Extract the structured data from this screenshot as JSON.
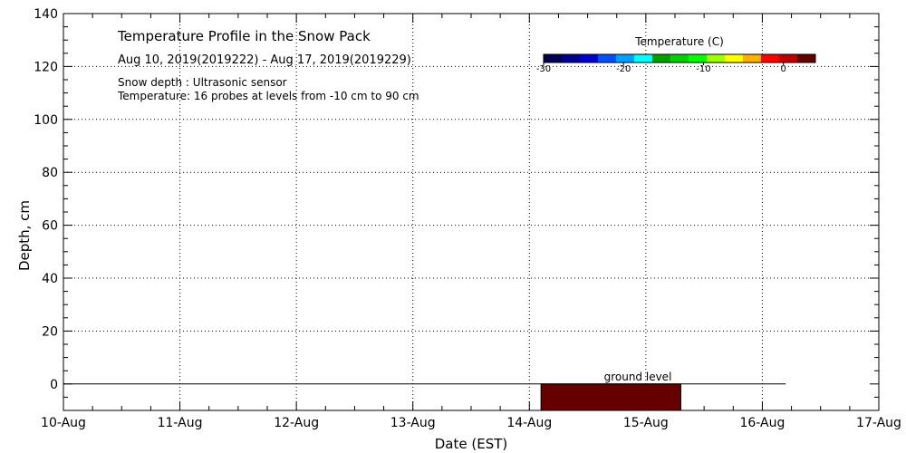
{
  "chart_data": {
    "type": "heatmap",
    "title": "Temperature Profile in the Snow Pack",
    "subtitle": "Aug 10, 2019(2019222) - Aug 17, 2019(2019229)",
    "notes": [
      "Snow depth : Ultrasonic sensor",
      "Temperature: 16 probes at levels from -10 cm to 90 cm"
    ],
    "xlabel": "Date (EST)",
    "ylabel": "Depth, cm",
    "x_ticks": [
      "10-Aug",
      "11-Aug",
      "12-Aug",
      "13-Aug",
      "14-Aug",
      "15-Aug",
      "16-Aug",
      "17-Aug"
    ],
    "x_range": [
      "2019-08-10",
      "2019-08-17"
    ],
    "y_ticks": [
      0,
      20,
      40,
      60,
      80,
      100,
      120,
      140
    ],
    "ylim": [
      -10,
      140
    ],
    "grid": true,
    "colorbar": {
      "title": "Temperature (C)",
      "ticks": [
        -30,
        -20,
        -10,
        0
      ],
      "range": [
        -30,
        4
      ],
      "colors": [
        "#000050",
        "#000090",
        "#0000d0",
        "#0050ff",
        "#00a0ff",
        "#00ffff",
        "#00a000",
        "#00d000",
        "#00ff00",
        "#a0ff00",
        "#ffff00",
        "#ffb000",
        "#ff0000",
        "#c00000",
        "#600000"
      ]
    },
    "snow_depth_line": {
      "value": 0,
      "x_start": "2019-08-10",
      "x_end": "2019-08-16.2"
    },
    "temperature_block": {
      "x_start": "2019-08-14.1",
      "x_end": "2019-08-15.3",
      "y_start": -10,
      "y_end": 0,
      "color": "#660000"
    },
    "annotation": "ground level"
  }
}
